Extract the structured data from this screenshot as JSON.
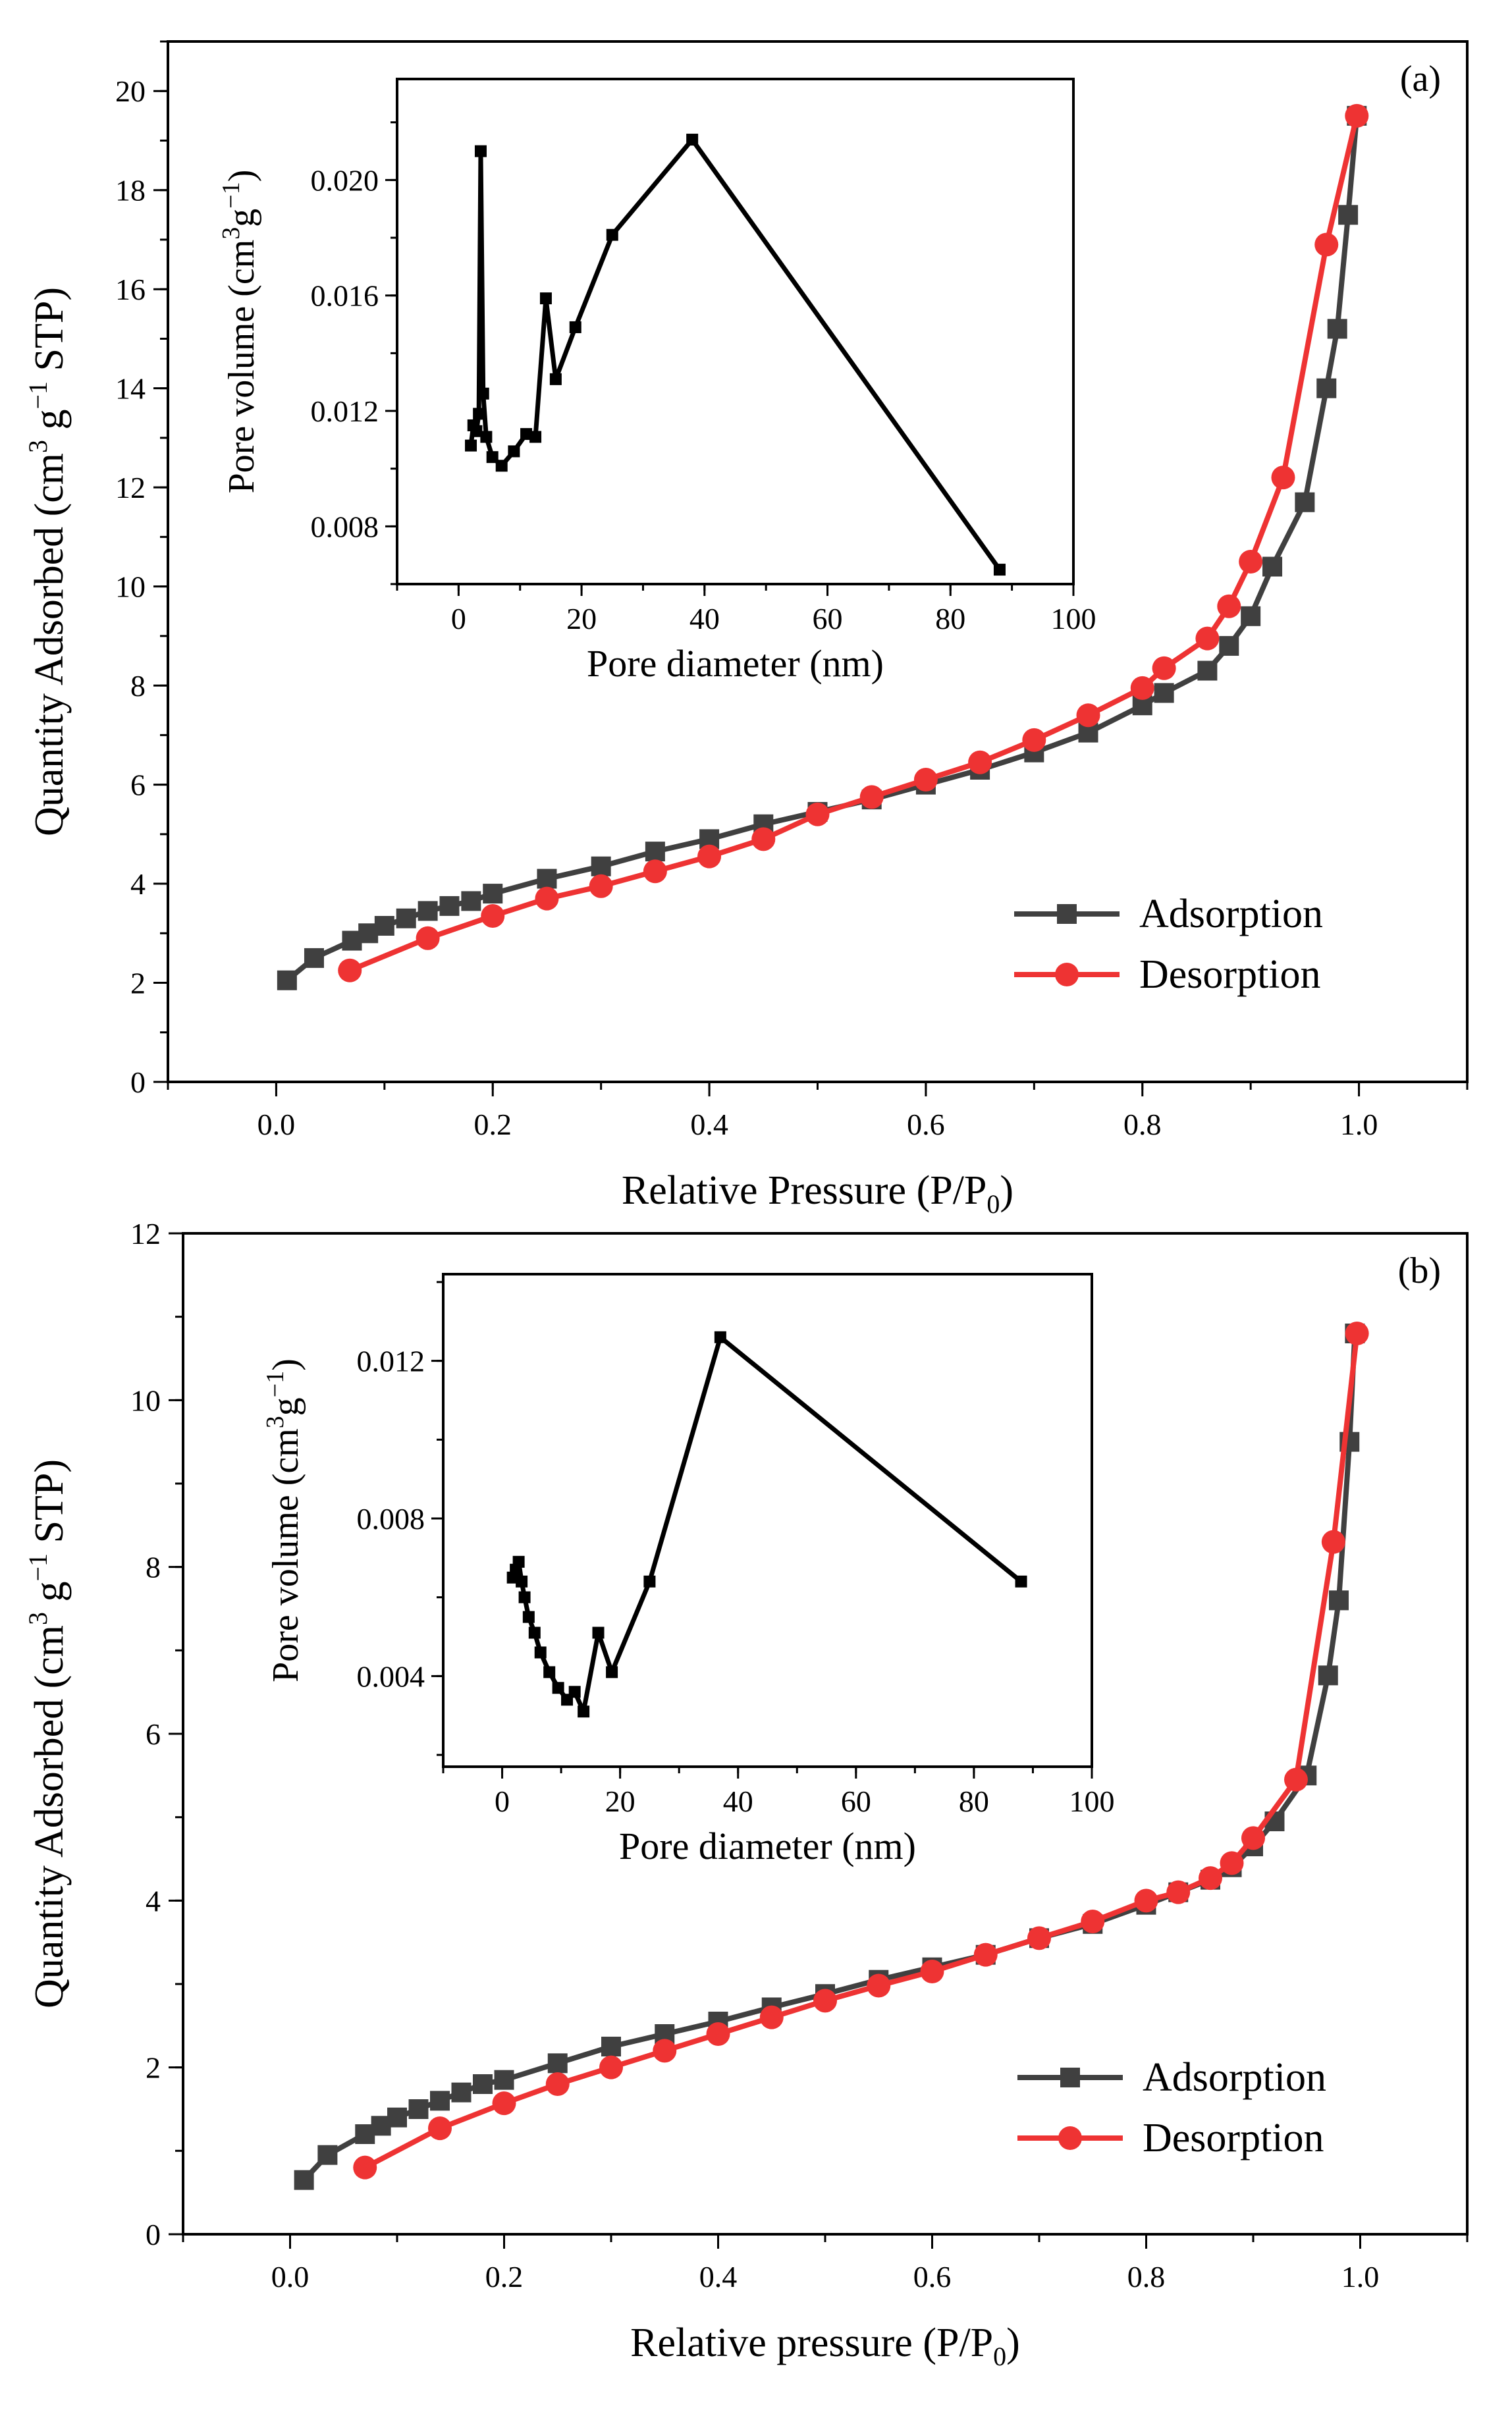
{
  "chart_data": [
    {
      "type": "line",
      "panel_label": "(a)",
      "xlabel": "Relative Pressure (P/P",
      "xlabel_sub": "0",
      "xlabel_end": ")",
      "ylabel_pre": "Quantity Adsorbed (cm",
      "ylabel_sup1": "3",
      "ylabel_mid": " g",
      "ylabel_sup2": "−1",
      "ylabel_post": " STP)",
      "xlim": [
        -0.1,
        1.1
      ],
      "ylim": [
        0,
        21
      ],
      "xticks": [
        0.0,
        0.2,
        0.4,
        0.6,
        0.8,
        1.0
      ],
      "xtick_labels": [
        "0.0",
        "0.2",
        "0.4",
        "0.6",
        "0.8",
        "1.0"
      ],
      "yticks": [
        0,
        2,
        4,
        6,
        8,
        10,
        12,
        14,
        16,
        18,
        20
      ],
      "ytick_labels": [
        "0",
        "2",
        "4",
        "6",
        "8",
        "10",
        "12",
        "14",
        "16",
        "18",
        "20"
      ],
      "legend_position": "bottom-right",
      "series": [
        {
          "name": "Adsorption",
          "marker": "square",
          "color": "#404040",
          "x": [
            0.01,
            0.035,
            0.07,
            0.085,
            0.1,
            0.12,
            0.14,
            0.16,
            0.18,
            0.2,
            0.25,
            0.3,
            0.35,
            0.4,
            0.45,
            0.5,
            0.55,
            0.6,
            0.65,
            0.7,
            0.75,
            0.8,
            0.82,
            0.86,
            0.88,
            0.9,
            0.92,
            0.95,
            0.97,
            0.98,
            0.99,
            0.998
          ],
          "y": [
            2.05,
            2.5,
            2.85,
            3.0,
            3.15,
            3.3,
            3.45,
            3.55,
            3.65,
            3.8,
            4.1,
            4.35,
            4.65,
            4.9,
            5.2,
            5.45,
            5.7,
            6.0,
            6.3,
            6.65,
            7.05,
            7.6,
            7.85,
            8.3,
            8.8,
            9.4,
            10.4,
            11.7,
            14.0,
            15.2,
            17.5,
            19.5
          ]
        },
        {
          "name": "Desorption",
          "marker": "circle",
          "color": "#ee3333",
          "x": [
            0.068,
            0.14,
            0.2,
            0.25,
            0.3,
            0.35,
            0.4,
            0.45,
            0.5,
            0.55,
            0.6,
            0.65,
            0.7,
            0.75,
            0.8,
            0.82,
            0.86,
            0.88,
            0.9,
            0.93,
            0.97,
            0.998
          ],
          "y": [
            2.25,
            2.9,
            3.35,
            3.7,
            3.95,
            4.25,
            4.55,
            4.9,
            5.4,
            5.75,
            6.1,
            6.45,
            6.9,
            7.4,
            7.95,
            8.35,
            8.95,
            9.6,
            10.5,
            12.2,
            16.9,
            19.5
          ]
        }
      ],
      "inset": {
        "type": "line",
        "xlabel": "Pore diameter (nm)",
        "ylabel_pre": "Pore volume (cm",
        "ylabel_sup1": "3",
        "ylabel_mid": "g",
        "ylabel_sup2": "−1",
        "ylabel_post": ")",
        "xlim": [
          -10,
          100
        ],
        "ylim": [
          0.006,
          0.0235
        ],
        "xticks": [
          0,
          20,
          40,
          60,
          80,
          100
        ],
        "xtick_labels": [
          "0",
          "20",
          "40",
          "60",
          "80",
          "100"
        ],
        "yticks": [
          0.008,
          0.012,
          0.016,
          0.02
        ],
        "ytick_labels": [
          "0.008",
          "0.012",
          "0.016",
          "0.020"
        ],
        "series": [
          {
            "marker": "square",
            "color": "#000000",
            "x": [
              2.0,
              2.4,
              2.9,
              3.3,
              3.6,
              4.0,
              4.5,
              5.5,
              7.0,
              9.0,
              11.0,
              12.5,
              14.2,
              15.8,
              19.0,
              25.0,
              38.0,
              88.0
            ],
            "y": [
              0.0108,
              0.0115,
              0.0113,
              0.0119,
              0.021,
              0.0126,
              0.0111,
              0.0104,
              0.0101,
              0.0106,
              0.0112,
              0.0111,
              0.0159,
              0.0131,
              0.0149,
              0.0181,
              0.0214,
              0.0065
            ]
          }
        ]
      }
    },
    {
      "type": "line",
      "panel_label": "(b)",
      "xlabel": "Relative pressure (P/P",
      "xlabel_sub": "0",
      "xlabel_end": ")",
      "ylabel_pre": "Quantity Adsorbed (cm",
      "ylabel_sup1": "3",
      "ylabel_mid": " g",
      "ylabel_sup2": "−1",
      "ylabel_post": " STP)",
      "xlim": [
        -0.1,
        1.1
      ],
      "ylim": [
        0,
        12
      ],
      "xticks": [
        0.0,
        0.2,
        0.4,
        0.6,
        0.8,
        1.0
      ],
      "xtick_labels": [
        "0.0",
        "0.2",
        "0.4",
        "0.6",
        "0.8",
        "1.0"
      ],
      "yticks": [
        0,
        2,
        4,
        6,
        8,
        10,
        12
      ],
      "ytick_labels": [
        "0",
        "2",
        "4",
        "6",
        "8",
        "10",
        "12"
      ],
      "legend_position": "bottom-right",
      "series": [
        {
          "name": "Adsorption",
          "marker": "square",
          "color": "#404040",
          "x": [
            0.013,
            0.035,
            0.07,
            0.085,
            0.1,
            0.12,
            0.14,
            0.16,
            0.18,
            0.2,
            0.25,
            0.3,
            0.35,
            0.4,
            0.45,
            0.5,
            0.55,
            0.6,
            0.65,
            0.7,
            0.75,
            0.8,
            0.83,
            0.86,
            0.88,
            0.9,
            0.92,
            0.95,
            0.97,
            0.98,
            0.99,
            0.995
          ],
          "y": [
            0.65,
            0.95,
            1.2,
            1.3,
            1.4,
            1.5,
            1.6,
            1.7,
            1.8,
            1.85,
            2.05,
            2.25,
            2.4,
            2.55,
            2.72,
            2.88,
            3.05,
            3.2,
            3.35,
            3.55,
            3.72,
            3.95,
            4.1,
            4.25,
            4.4,
            4.65,
            4.95,
            5.5,
            6.7,
            7.6,
            9.5,
            10.8
          ]
        },
        {
          "name": "Desorption",
          "marker": "circle",
          "color": "#ee3333",
          "x": [
            0.07,
            0.14,
            0.2,
            0.25,
            0.3,
            0.35,
            0.4,
            0.45,
            0.5,
            0.55,
            0.6,
            0.65,
            0.7,
            0.75,
            0.8,
            0.83,
            0.86,
            0.88,
            0.9,
            0.94,
            0.975,
            0.997
          ],
          "y": [
            0.8,
            1.27,
            1.57,
            1.8,
            2.0,
            2.2,
            2.4,
            2.6,
            2.8,
            2.98,
            3.15,
            3.35,
            3.55,
            3.75,
            4.0,
            4.1,
            4.27,
            4.45,
            4.75,
            5.45,
            8.3,
            10.8
          ]
        }
      ],
      "inset": {
        "type": "line",
        "xlabel": "Pore diameter (nm)",
        "ylabel_pre": "Pore volume (cm",
        "ylabel_sup1": "3",
        "ylabel_mid": "g",
        "ylabel_sup2": "−1",
        "ylabel_post": ")",
        "xlim": [
          -10,
          100
        ],
        "ylim": [
          0.0017,
          0.0142
        ],
        "xticks": [
          0,
          20,
          40,
          60,
          80,
          100
        ],
        "xtick_labels": [
          "0",
          "20",
          "40",
          "60",
          "80",
          "100"
        ],
        "yticks": [
          0.004,
          0.008,
          0.012
        ],
        "ytick_labels": [
          "0.004",
          "0.008",
          "0.012"
        ],
        "series": [
          {
            "marker": "square",
            "color": "#000000",
            "x": [
              1.8,
              2.3,
              2.8,
              3.3,
              3.8,
              4.5,
              5.5,
              6.5,
              8.0,
              9.5,
              11.0,
              12.3,
              13.8,
              16.3,
              18.6,
              25.0,
              37.0,
              88.0
            ],
            "y": [
              0.0065,
              0.0067,
              0.0069,
              0.0064,
              0.006,
              0.0055,
              0.0051,
              0.0046,
              0.0041,
              0.0037,
              0.0034,
              0.0036,
              0.0031,
              0.0051,
              0.0041,
              0.0064,
              0.0126,
              0.0064
            ]
          }
        ]
      }
    }
  ]
}
